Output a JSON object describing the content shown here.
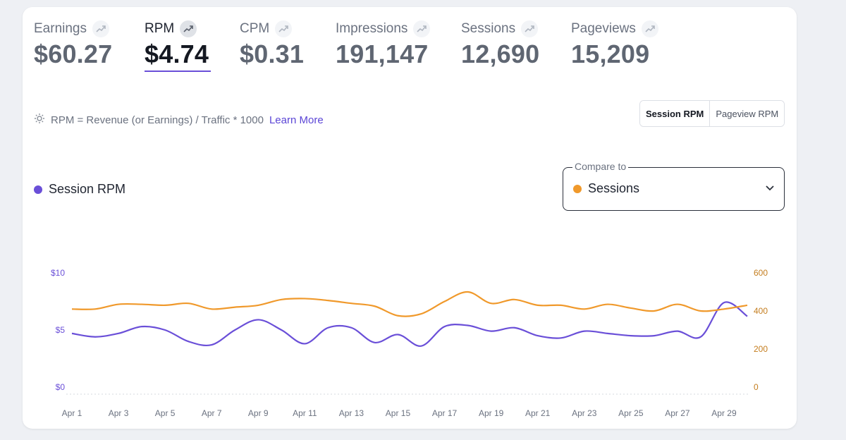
{
  "metrics": [
    {
      "label": "Earnings",
      "value": "$60.27",
      "active": false
    },
    {
      "label": "RPM",
      "value": "$4.74",
      "active": true
    },
    {
      "label": "CPM",
      "value": "$0.31",
      "active": false
    },
    {
      "label": "Impressions",
      "value": "191,147",
      "active": false
    },
    {
      "label": "Sessions",
      "value": "12,690",
      "active": false
    },
    {
      "label": "Pageviews",
      "value": "15,209",
      "active": false
    }
  ],
  "formula": {
    "text": "RPM = Revenue (or Earnings) / Traffic * 1000",
    "link": "Learn More"
  },
  "toggle": {
    "options": [
      "Session RPM",
      "Pageview RPM"
    ],
    "active": "Session RPM"
  },
  "legend": {
    "label": "Session RPM",
    "color": "#6a4fd8"
  },
  "compare": {
    "label": "Compare to",
    "value": "Sessions",
    "color": "#f0992b"
  },
  "chart_data": {
    "type": "line",
    "x": [
      "Apr 1",
      "Apr 2",
      "Apr 3",
      "Apr 4",
      "Apr 5",
      "Apr 6",
      "Apr 7",
      "Apr 8",
      "Apr 9",
      "Apr 10",
      "Apr 11",
      "Apr 12",
      "Apr 13",
      "Apr 14",
      "Apr 15",
      "Apr 16",
      "Apr 17",
      "Apr 18",
      "Apr 19",
      "Apr 20",
      "Apr 21",
      "Apr 22",
      "Apr 23",
      "Apr 24",
      "Apr 25",
      "Apr 26",
      "Apr 27",
      "Apr 28",
      "Apr 29",
      "Apr 30"
    ],
    "xticks": [
      "Apr 1",
      "Apr 3",
      "Apr 5",
      "Apr 7",
      "Apr 9",
      "Apr 11",
      "Apr 13",
      "Apr 15",
      "Apr 17",
      "Apr 19",
      "Apr 21",
      "Apr 23",
      "Apr 25",
      "Apr 27",
      "Apr 29"
    ],
    "series": [
      {
        "name": "Session RPM",
        "axis": "left",
        "color": "#6a4fd8",
        "values": [
          4.7,
          4.4,
          4.7,
          5.3,
          5.0,
          4.0,
          3.7,
          5.0,
          5.9,
          5.0,
          3.8,
          5.2,
          5.2,
          3.9,
          4.6,
          3.6,
          5.3,
          5.4,
          4.9,
          5.2,
          4.5,
          4.3,
          4.9,
          4.7,
          4.5,
          4.5,
          4.9,
          4.4,
          7.4,
          6.2
        ]
      },
      {
        "name": "Sessions",
        "axis": "right",
        "color": "#f0992b",
        "values": [
          410,
          410,
          435,
          435,
          430,
          440,
          410,
          420,
          430,
          460,
          465,
          455,
          440,
          425,
          375,
          385,
          450,
          500,
          440,
          460,
          430,
          430,
          410,
          435,
          415,
          400,
          435,
          400,
          410,
          430
        ]
      }
    ],
    "y_left": {
      "ticks": [
        "$10",
        "$5",
        "$0"
      ],
      "range": [
        0,
        10
      ],
      "color": "#6a4fd8"
    },
    "y_right": {
      "ticks": [
        "600",
        "400",
        "200",
        "0"
      ],
      "range": [
        0,
        600
      ],
      "color": "#c47d1e"
    },
    "grid": false
  }
}
